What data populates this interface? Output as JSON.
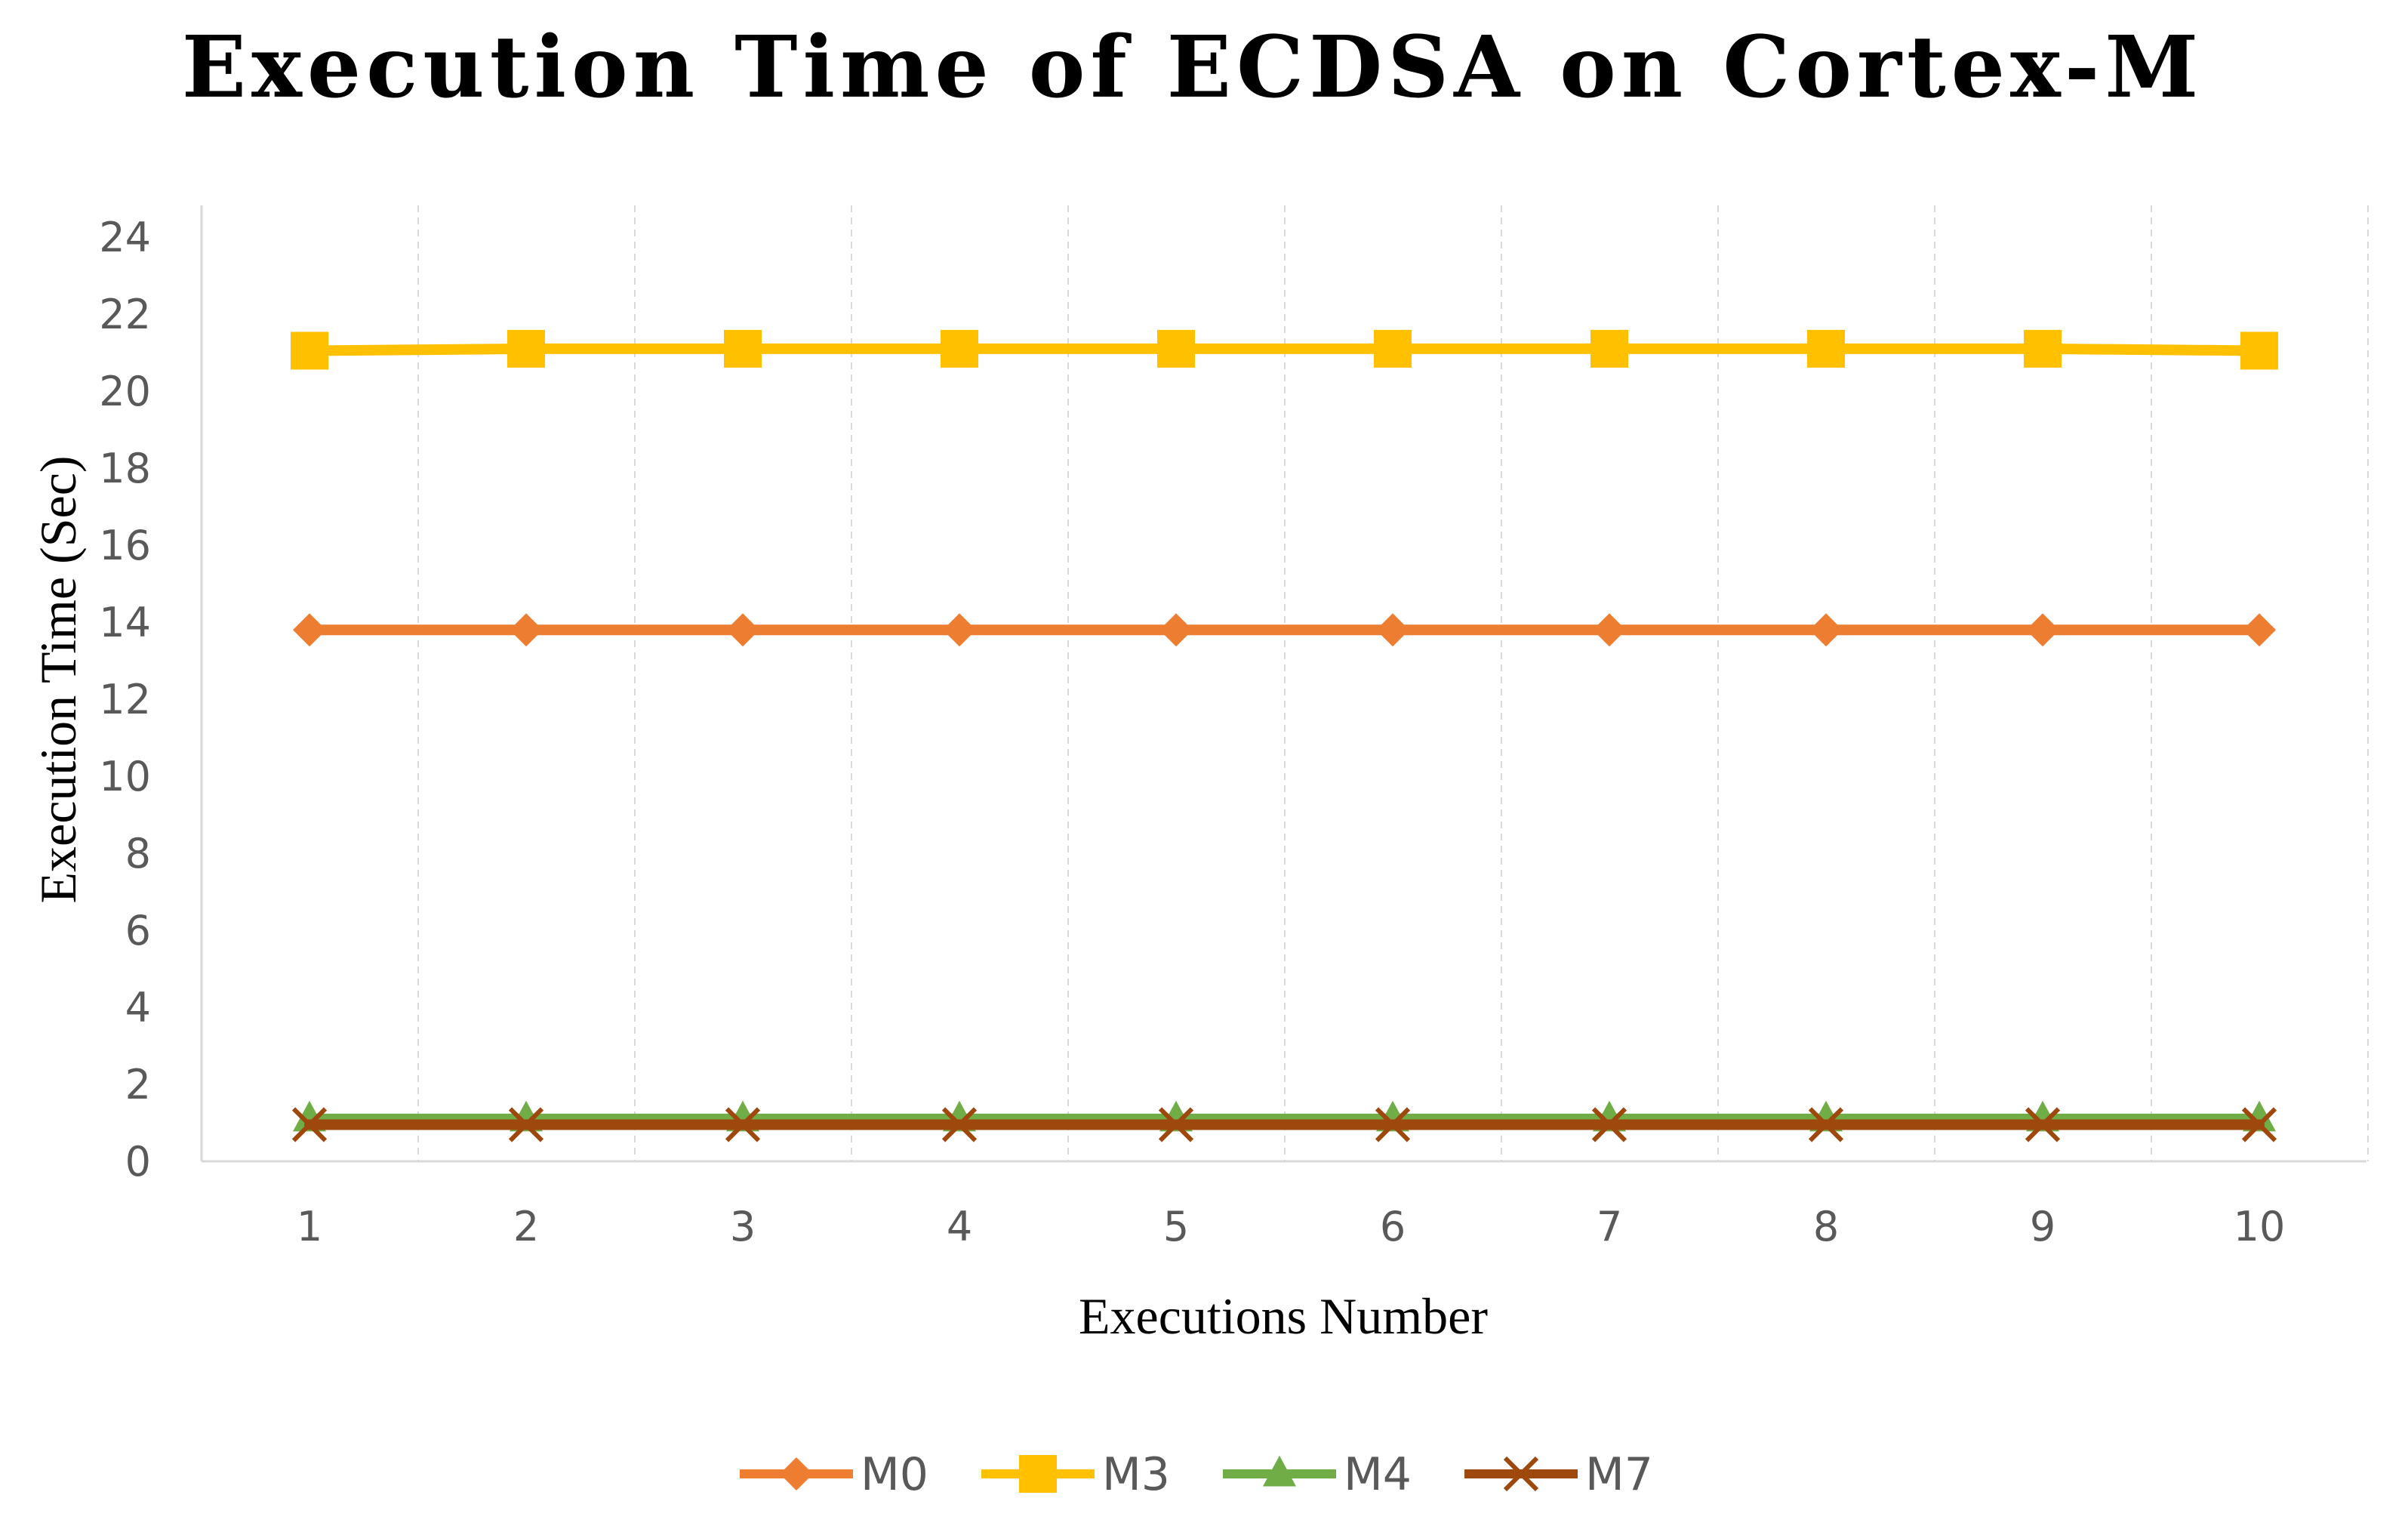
{
  "chart_data": {
    "type": "line",
    "title": "Execution Time of ECDSA on Cortex-M",
    "xlabel": "Executions Number",
    "ylabel": "Execution Time (Sec)",
    "x": [
      1,
      2,
      3,
      4,
      5,
      6,
      7,
      8,
      9,
      10
    ],
    "x_tick_labels": [
      "1",
      "2",
      "3",
      "4",
      "5",
      "6",
      "7",
      "8",
      "9",
      "10"
    ],
    "ylim": [
      0,
      24
    ],
    "y_ticks": [
      0,
      2,
      4,
      6,
      8,
      10,
      12,
      14,
      16,
      18,
      20,
      22,
      24
    ],
    "grid": "vertical dashed",
    "legend_position": "bottom",
    "series": [
      {
        "name": "M0",
        "color": "#ED7D31",
        "marker": "diamond",
        "values": [
          13.8,
          13.8,
          13.8,
          13.8,
          13.8,
          13.8,
          13.8,
          13.8,
          13.8,
          13.8
        ]
      },
      {
        "name": "M3",
        "color": "#FFC000",
        "marker": "square",
        "values": [
          21.05,
          21.1,
          21.1,
          21.1,
          21.1,
          21.1,
          21.1,
          21.1,
          21.1,
          21.05
        ]
      },
      {
        "name": "M4",
        "color": "#70AD47",
        "marker": "triangle",
        "values": [
          1.1,
          1.1,
          1.1,
          1.1,
          1.1,
          1.1,
          1.1,
          1.1,
          1.1,
          1.1
        ]
      },
      {
        "name": "M7",
        "color": "#9E480E",
        "marker": "x",
        "values": [
          0.95,
          0.95,
          0.95,
          0.95,
          0.95,
          0.95,
          0.95,
          0.95,
          0.95,
          0.95
        ]
      }
    ]
  }
}
